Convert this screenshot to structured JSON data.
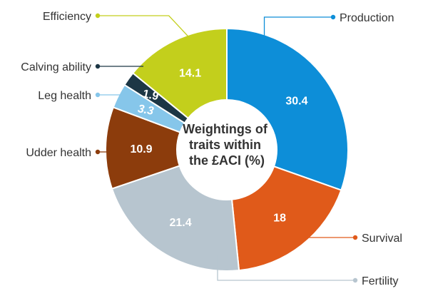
{
  "chart_data": {
    "type": "pie",
    "title_lines": [
      "Weightings of",
      "traits within",
      "the £ACI (%)"
    ],
    "series": [
      {
        "name": "Production",
        "value": 30.4,
        "label": "30.4",
        "color": "#0d8ed8"
      },
      {
        "name": "Survival",
        "value": 18,
        "label": "18",
        "color": "#e05a1a"
      },
      {
        "name": "Fertility",
        "value": 21.4,
        "label": "21.4",
        "color": "#b7c5cf"
      },
      {
        "name": "Udder health",
        "value": 10.9,
        "label": "10.9",
        "color": "#8c3c0c"
      },
      {
        "name": "Leg health",
        "value": 3.3,
        "label": "3.3",
        "color": "#86c6ea"
      },
      {
        "name": "Calving ability",
        "value": 1.9,
        "label": "1.9",
        "color": "#1c3645"
      },
      {
        "name": "Efficiency",
        "value": 14.1,
        "label": "14.1",
        "color": "#c3cf1c"
      }
    ]
  }
}
